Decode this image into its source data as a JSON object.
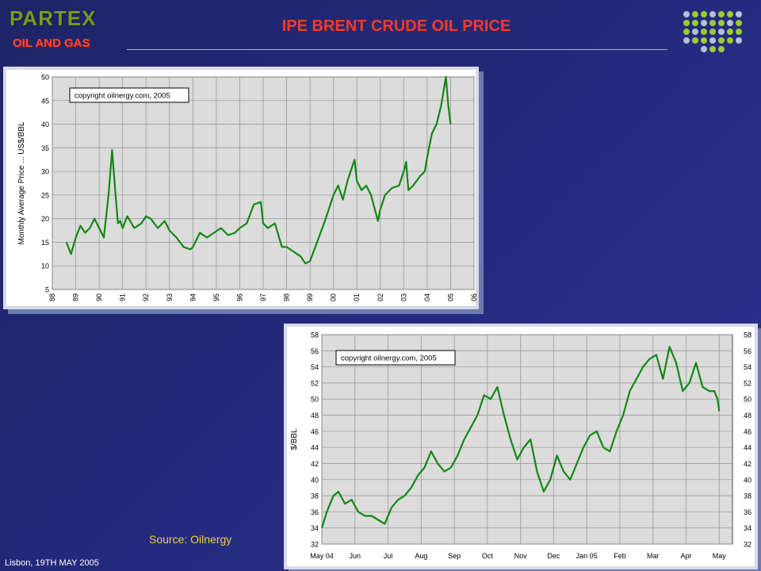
{
  "header": {
    "logo_name": "PARTEX",
    "logo_subtitle": "OIL AND GAS",
    "title": "IPE BRENT CRUDE OIL PRICE"
  },
  "source": "Source: Oilnergy",
  "footer": "Lisbon, 19TH MAY 2005",
  "colors": {
    "title": "#ff3a22",
    "line": "#118811",
    "logo_green": "#7a9a1e",
    "logo_red": "#ff4a33",
    "source": "#f0d040"
  },
  "chart_data": [
    {
      "type": "line",
      "copyright": "copyright oilnergy.com, 2005",
      "ylabel": "Monthly Average Price ... US$/BBL",
      "xlabel": "",
      "ylim": [
        5,
        50
      ],
      "xlim": [
        1988,
        2006
      ],
      "yticks": [
        "5",
        "10",
        "15",
        "20",
        "25",
        "30",
        "35",
        "40",
        "45",
        "50"
      ],
      "xticks": [
        "88",
        "89",
        "90",
        "91",
        "92",
        "93",
        "94",
        "95",
        "96",
        "97",
        "98",
        "99",
        "00",
        "01",
        "02",
        "03",
        "04",
        "05",
        "06"
      ],
      "grid": true,
      "series": [
        {
          "x": [
            1988.6,
            1988.8,
            1989.0,
            1989.2,
            1989.4,
            1989.6,
            1989.8,
            1990.0,
            1990.2,
            1990.4,
            1990.55,
            1990.7,
            1990.8,
            1990.9,
            1991.0,
            1991.2,
            1991.5,
            1991.8,
            1992.0,
            1992.2,
            1992.5,
            1992.8,
            1993.0,
            1993.3,
            1993.6,
            1993.9,
            1994.0,
            1994.3,
            1994.6,
            1994.9,
            1995.2,
            1995.5,
            1995.8,
            1996.0,
            1996.3,
            1996.6,
            1996.9,
            1997.0,
            1997.2,
            1997.5,
            1997.8,
            1998.0,
            1998.3,
            1998.6,
            1998.8,
            1999.0,
            1999.3,
            1999.6,
            1999.8,
            2000.0,
            2000.2,
            2000.4,
            2000.6,
            2000.8,
            2000.9,
            2001.0,
            2001.2,
            2001.4,
            2001.6,
            2001.9,
            2002.0,
            2002.2,
            2002.5,
            2002.8,
            2003.0,
            2003.1,
            2003.2,
            2003.4,
            2003.7,
            2003.9,
            2004.0,
            2004.2,
            2004.4,
            2004.6,
            2004.8,
            2004.9,
            2005.0
          ],
          "y": [
            15,
            12.5,
            16,
            18.5,
            17,
            18,
            20,
            18,
            16,
            25,
            34.5,
            25,
            19,
            19.5,
            18,
            20.5,
            18,
            19,
            20.5,
            20,
            18,
            19.5,
            17.5,
            16,
            14,
            13.5,
            14,
            17,
            16,
            17,
            18,
            16.5,
            17,
            18,
            19,
            23,
            23.5,
            19,
            18,
            19,
            14,
            14,
            13,
            12,
            10.5,
            11,
            15,
            19,
            22,
            25,
            27,
            24,
            28,
            31,
            32.5,
            28,
            26,
            27,
            25,
            19.5,
            22,
            25,
            26.5,
            27,
            30,
            32,
            26,
            27,
            29,
            30,
            33,
            38,
            40,
            44,
            50,
            44,
            40
          ]
        }
      ]
    },
    {
      "type": "line",
      "copyright": "copyright oilnergy.com, 2005",
      "ylabel": "$/BBL",
      "xlabel": "",
      "ylim": [
        32,
        58
      ],
      "xlim": [
        0,
        12.4
      ],
      "yticks": [
        "32",
        "34",
        "36",
        "38",
        "40",
        "42",
        "44",
        "46",
        "48",
        "50",
        "52",
        "54",
        "56",
        "58"
      ],
      "xticks": [
        "May 04",
        "Jun",
        "Jul",
        "Aug",
        "Sep",
        "Oct",
        "Nov",
        "Dec",
        "Jan 05",
        "Feb",
        "Mar",
        "Apr",
        "May"
      ],
      "grid": true,
      "series": [
        {
          "x": [
            0,
            0.15,
            0.35,
            0.5,
            0.7,
            0.9,
            1.1,
            1.3,
            1.5,
            1.7,
            1.9,
            2.1,
            2.3,
            2.5,
            2.7,
            2.9,
            3.1,
            3.3,
            3.5,
            3.7,
            3.9,
            4.1,
            4.3,
            4.5,
            4.7,
            4.9,
            5.1,
            5.3,
            5.5,
            5.7,
            5.9,
            6.1,
            6.3,
            6.5,
            6.7,
            6.9,
            7.1,
            7.3,
            7.5,
            7.7,
            7.9,
            8.1,
            8.3,
            8.5,
            8.7,
            8.9,
            9.1,
            9.3,
            9.5,
            9.7,
            9.9,
            10.1,
            10.3,
            10.5,
            10.7,
            10.9,
            11.1,
            11.3,
            11.5,
            11.7,
            11.85,
            11.95,
            12.0
          ],
          "y": [
            34,
            36,
            38,
            38.5,
            37,
            37.5,
            36,
            35.5,
            35.5,
            35,
            34.5,
            36.5,
            37.5,
            38,
            39,
            40.5,
            41.5,
            43.5,
            42,
            41,
            41.5,
            43,
            45,
            46.5,
            48,
            50.5,
            50,
            51.5,
            48,
            45,
            42.5,
            44,
            45,
            41,
            38.5,
            40,
            43,
            41,
            40,
            42,
            44,
            45.5,
            46,
            44,
            43.5,
            46,
            48,
            51,
            52.5,
            54,
            55,
            55.5,
            52.5,
            56.5,
            54.5,
            51,
            52,
            54.5,
            51.5,
            51,
            51,
            50,
            48.5
          ]
        }
      ]
    }
  ]
}
